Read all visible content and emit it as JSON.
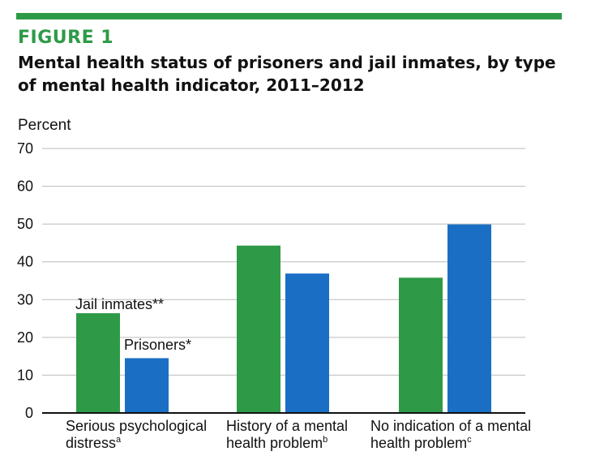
{
  "figure": {
    "label": "FIGURE 1",
    "title": "Mental health status of prisoners and jail inmates, by type of mental health indicator, 2011–2012"
  },
  "colors": {
    "jail": "#2e9a47",
    "prisoners": "#1a6fc4",
    "rule": "#2e9a47",
    "grid": "#bbbbbb"
  },
  "chart_data": {
    "type": "bar",
    "ylabel": "Percent",
    "ylim": [
      0,
      70
    ],
    "yticks": [
      0,
      10,
      20,
      30,
      40,
      50,
      60,
      70
    ],
    "grid": true,
    "categories": [
      {
        "lines": [
          "Serious psychological",
          "distress"
        ],
        "sup": "a"
      },
      {
        "lines": [
          "History of a mental",
          "health problem"
        ],
        "sup": "b"
      },
      {
        "lines": [
          "No indication of a mental",
          "health problem"
        ],
        "sup": "c"
      }
    ],
    "series": [
      {
        "name": "Jail inmates**",
        "values": [
          26.4,
          44.3,
          35.8
        ]
      },
      {
        "name": "Prisoners*",
        "values": [
          14.5,
          36.9,
          49.9
        ]
      }
    ]
  }
}
